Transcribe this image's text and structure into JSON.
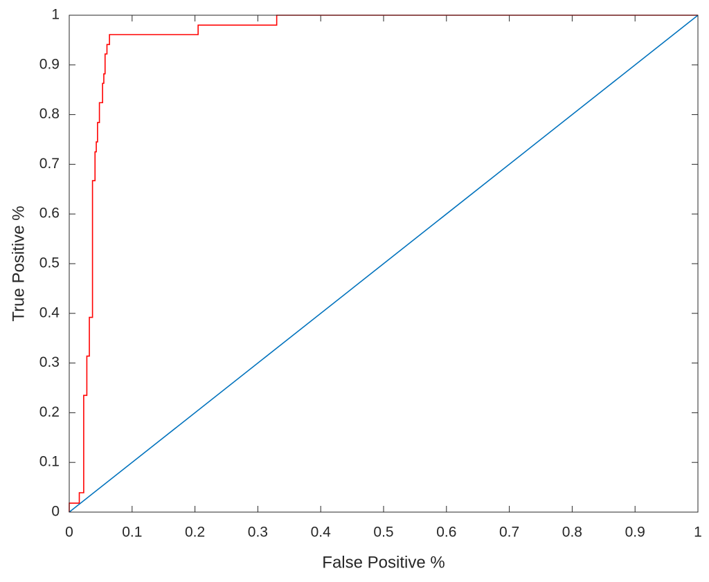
{
  "chart_data": {
    "type": "line",
    "xlabel": "False Positive %",
    "ylabel": "True Positive %",
    "xlim": [
      0,
      1
    ],
    "ylim": [
      0,
      1
    ],
    "xticks": [
      0,
      0.1,
      0.2,
      0.3,
      0.4,
      0.5,
      0.6,
      0.7,
      0.8,
      0.9,
      1
    ],
    "yticks": [
      0,
      0.1,
      0.2,
      0.3,
      0.4,
      0.5,
      0.6,
      0.7,
      0.8,
      0.9,
      1
    ],
    "grid": false,
    "series": [
      {
        "color": "#ff0000",
        "x": [
          0,
          0,
          0.016,
          0.016,
          0.023,
          0.023,
          0.028,
          0.028,
          0.032,
          0.032,
          0.037,
          0.037,
          0.041,
          0.041,
          0.043,
          0.043,
          0.045,
          0.045,
          0.048,
          0.048,
          0.053,
          0.053,
          0.055,
          0.055,
          0.057,
          0.057,
          0.06,
          0.06,
          0.064,
          0.064,
          0.205,
          0.205,
          0.33,
          0.33,
          1
        ],
        "values": [
          0,
          0.018,
          0.018,
          0.039,
          0.039,
          0.235,
          0.235,
          0.314,
          0.314,
          0.392,
          0.392,
          0.667,
          0.667,
          0.725,
          0.725,
          0.745,
          0.745,
          0.784,
          0.784,
          0.824,
          0.824,
          0.863,
          0.863,
          0.882,
          0.882,
          0.922,
          0.922,
          0.941,
          0.941,
          0.961,
          0.961,
          0.98,
          0.98,
          1,
          1
        ]
      },
      {
        "color": "#0072bd",
        "x": [
          0,
          1
        ],
        "values": [
          0,
          1
        ]
      }
    ]
  }
}
